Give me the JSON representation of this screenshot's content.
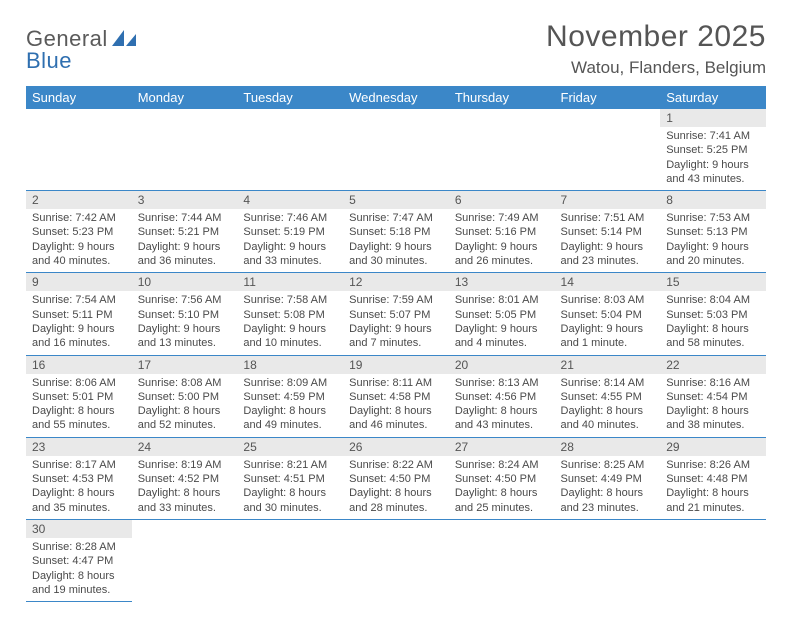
{
  "logo": {
    "part1": "General",
    "part2": "Blue"
  },
  "title": "November 2025",
  "location": "Watou, Flanders, Belgium",
  "colors": {
    "header_bg": "#3b87c8",
    "daynum_bg": "#e9e9e9",
    "rule": "#3b87c8"
  },
  "weekdays": [
    "Sunday",
    "Monday",
    "Tuesday",
    "Wednesday",
    "Thursday",
    "Friday",
    "Saturday"
  ],
  "weeks": [
    [
      null,
      null,
      null,
      null,
      null,
      null,
      {
        "n": "1",
        "sr": "Sunrise: 7:41 AM",
        "ss": "Sunset: 5:25 PM",
        "d1": "Daylight: 9 hours",
        "d2": "and 43 minutes."
      }
    ],
    [
      {
        "n": "2",
        "sr": "Sunrise: 7:42 AM",
        "ss": "Sunset: 5:23 PM",
        "d1": "Daylight: 9 hours",
        "d2": "and 40 minutes."
      },
      {
        "n": "3",
        "sr": "Sunrise: 7:44 AM",
        "ss": "Sunset: 5:21 PM",
        "d1": "Daylight: 9 hours",
        "d2": "and 36 minutes."
      },
      {
        "n": "4",
        "sr": "Sunrise: 7:46 AM",
        "ss": "Sunset: 5:19 PM",
        "d1": "Daylight: 9 hours",
        "d2": "and 33 minutes."
      },
      {
        "n": "5",
        "sr": "Sunrise: 7:47 AM",
        "ss": "Sunset: 5:18 PM",
        "d1": "Daylight: 9 hours",
        "d2": "and 30 minutes."
      },
      {
        "n": "6",
        "sr": "Sunrise: 7:49 AM",
        "ss": "Sunset: 5:16 PM",
        "d1": "Daylight: 9 hours",
        "d2": "and 26 minutes."
      },
      {
        "n": "7",
        "sr": "Sunrise: 7:51 AM",
        "ss": "Sunset: 5:14 PM",
        "d1": "Daylight: 9 hours",
        "d2": "and 23 minutes."
      },
      {
        "n": "8",
        "sr": "Sunrise: 7:53 AM",
        "ss": "Sunset: 5:13 PM",
        "d1": "Daylight: 9 hours",
        "d2": "and 20 minutes."
      }
    ],
    [
      {
        "n": "9",
        "sr": "Sunrise: 7:54 AM",
        "ss": "Sunset: 5:11 PM",
        "d1": "Daylight: 9 hours",
        "d2": "and 16 minutes."
      },
      {
        "n": "10",
        "sr": "Sunrise: 7:56 AM",
        "ss": "Sunset: 5:10 PM",
        "d1": "Daylight: 9 hours",
        "d2": "and 13 minutes."
      },
      {
        "n": "11",
        "sr": "Sunrise: 7:58 AM",
        "ss": "Sunset: 5:08 PM",
        "d1": "Daylight: 9 hours",
        "d2": "and 10 minutes."
      },
      {
        "n": "12",
        "sr": "Sunrise: 7:59 AM",
        "ss": "Sunset: 5:07 PM",
        "d1": "Daylight: 9 hours",
        "d2": "and 7 minutes."
      },
      {
        "n": "13",
        "sr": "Sunrise: 8:01 AM",
        "ss": "Sunset: 5:05 PM",
        "d1": "Daylight: 9 hours",
        "d2": "and 4 minutes."
      },
      {
        "n": "14",
        "sr": "Sunrise: 8:03 AM",
        "ss": "Sunset: 5:04 PM",
        "d1": "Daylight: 9 hours",
        "d2": "and 1 minute."
      },
      {
        "n": "15",
        "sr": "Sunrise: 8:04 AM",
        "ss": "Sunset: 5:03 PM",
        "d1": "Daylight: 8 hours",
        "d2": "and 58 minutes."
      }
    ],
    [
      {
        "n": "16",
        "sr": "Sunrise: 8:06 AM",
        "ss": "Sunset: 5:01 PM",
        "d1": "Daylight: 8 hours",
        "d2": "and 55 minutes."
      },
      {
        "n": "17",
        "sr": "Sunrise: 8:08 AM",
        "ss": "Sunset: 5:00 PM",
        "d1": "Daylight: 8 hours",
        "d2": "and 52 minutes."
      },
      {
        "n": "18",
        "sr": "Sunrise: 8:09 AM",
        "ss": "Sunset: 4:59 PM",
        "d1": "Daylight: 8 hours",
        "d2": "and 49 minutes."
      },
      {
        "n": "19",
        "sr": "Sunrise: 8:11 AM",
        "ss": "Sunset: 4:58 PM",
        "d1": "Daylight: 8 hours",
        "d2": "and 46 minutes."
      },
      {
        "n": "20",
        "sr": "Sunrise: 8:13 AM",
        "ss": "Sunset: 4:56 PM",
        "d1": "Daylight: 8 hours",
        "d2": "and 43 minutes."
      },
      {
        "n": "21",
        "sr": "Sunrise: 8:14 AM",
        "ss": "Sunset: 4:55 PM",
        "d1": "Daylight: 8 hours",
        "d2": "and 40 minutes."
      },
      {
        "n": "22",
        "sr": "Sunrise: 8:16 AM",
        "ss": "Sunset: 4:54 PM",
        "d1": "Daylight: 8 hours",
        "d2": "and 38 minutes."
      }
    ],
    [
      {
        "n": "23",
        "sr": "Sunrise: 8:17 AM",
        "ss": "Sunset: 4:53 PM",
        "d1": "Daylight: 8 hours",
        "d2": "and 35 minutes."
      },
      {
        "n": "24",
        "sr": "Sunrise: 8:19 AM",
        "ss": "Sunset: 4:52 PM",
        "d1": "Daylight: 8 hours",
        "d2": "and 33 minutes."
      },
      {
        "n": "25",
        "sr": "Sunrise: 8:21 AM",
        "ss": "Sunset: 4:51 PM",
        "d1": "Daylight: 8 hours",
        "d2": "and 30 minutes."
      },
      {
        "n": "26",
        "sr": "Sunrise: 8:22 AM",
        "ss": "Sunset: 4:50 PM",
        "d1": "Daylight: 8 hours",
        "d2": "and 28 minutes."
      },
      {
        "n": "27",
        "sr": "Sunrise: 8:24 AM",
        "ss": "Sunset: 4:50 PM",
        "d1": "Daylight: 8 hours",
        "d2": "and 25 minutes."
      },
      {
        "n": "28",
        "sr": "Sunrise: 8:25 AM",
        "ss": "Sunset: 4:49 PM",
        "d1": "Daylight: 8 hours",
        "d2": "and 23 minutes."
      },
      {
        "n": "29",
        "sr": "Sunrise: 8:26 AM",
        "ss": "Sunset: 4:48 PM",
        "d1": "Daylight: 8 hours",
        "d2": "and 21 minutes."
      }
    ],
    [
      {
        "n": "30",
        "sr": "Sunrise: 8:28 AM",
        "ss": "Sunset: 4:47 PM",
        "d1": "Daylight: 8 hours",
        "d2": "and 19 minutes."
      },
      null,
      null,
      null,
      null,
      null,
      null
    ]
  ]
}
